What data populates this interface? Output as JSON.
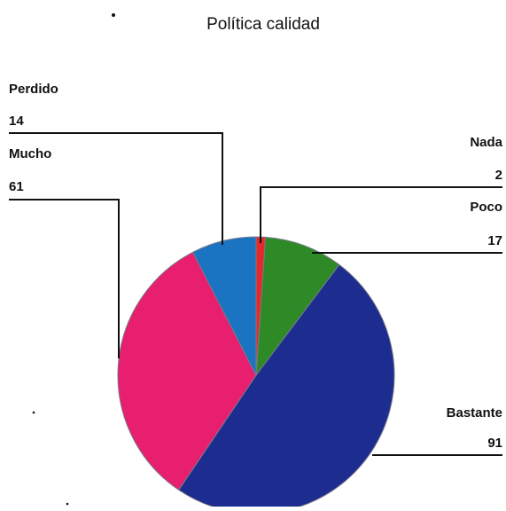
{
  "chart_data": {
    "type": "pie",
    "title": "Política calidad",
    "slices": [
      {
        "label": "Nada",
        "value": 2,
        "color": "#e32929"
      },
      {
        "label": "Poco",
        "value": 17,
        "color": "#2e8a26"
      },
      {
        "label": "Bastante",
        "value": 91,
        "color": "#1d2d8f"
      },
      {
        "label": "Mucho",
        "value": 61,
        "color": "#e81e6e"
      },
      {
        "label": "Perdido",
        "value": 14,
        "color": "#1a74c2"
      }
    ],
    "start_angle_deg": 0,
    "direction": "clockwise",
    "legend": "none",
    "label_style": "category name and value with leader lines"
  }
}
